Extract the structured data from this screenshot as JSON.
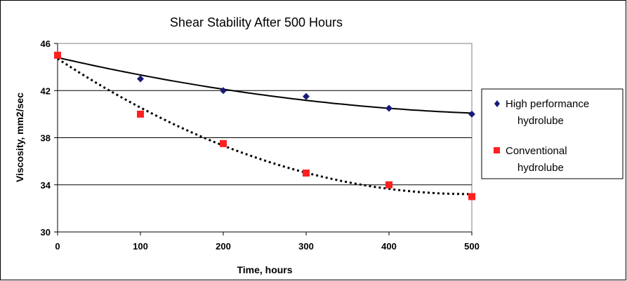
{
  "chart_data": {
    "type": "scatter",
    "title": "Shear Stability After 500 Hours",
    "xlabel": "Time, hours",
    "ylabel": "Viscosity, mm2/sec",
    "xlim": [
      0,
      500
    ],
    "ylim": [
      30,
      46
    ],
    "xticks": [
      0,
      100,
      200,
      300,
      400,
      500
    ],
    "yticks": [
      30,
      34,
      38,
      42,
      46
    ],
    "grid": "horizontal",
    "legend_position": "right",
    "series": [
      {
        "name": "High performance hydrolube",
        "marker": "diamond",
        "color": "#1a1a7a",
        "trendline": "solid",
        "x": [
          0,
          100,
          200,
          300,
          400,
          500
        ],
        "y": [
          45.0,
          43.0,
          42.0,
          41.5,
          40.5,
          40.0
        ]
      },
      {
        "name": "Conventional hydrolube",
        "marker": "square",
        "color": "#ff2020",
        "trendline": "dotted",
        "x": [
          0,
          100,
          200,
          300,
          400,
          500
        ],
        "y": [
          45.0,
          40.0,
          37.5,
          35.0,
          34.0,
          33.0
        ]
      }
    ],
    "legend": [
      {
        "line1": "High performance",
        "line2": "hydrolube"
      },
      {
        "line1": "Conventional",
        "line2": "hydrolube"
      }
    ]
  }
}
